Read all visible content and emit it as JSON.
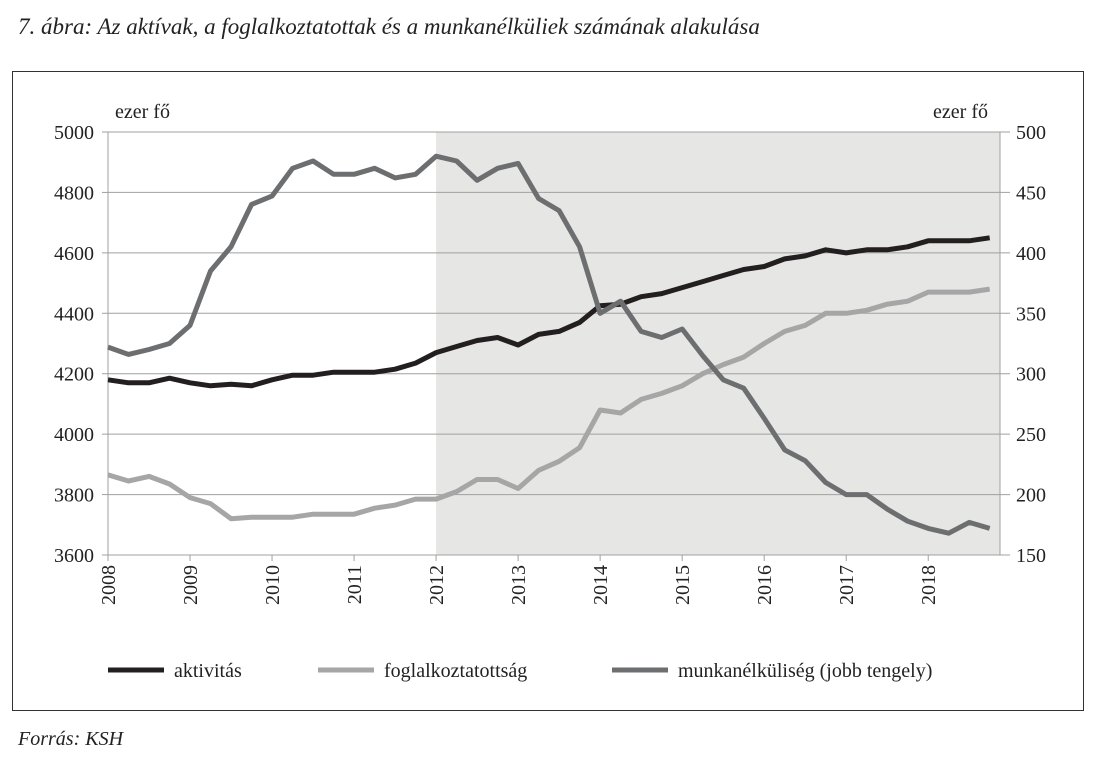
{
  "title": "7. ábra: Az aktívak, a foglalkoztatottak és a munkanélküliek számának alakulása",
  "source": "Forrás: KSH",
  "chart_data": {
    "type": "line",
    "title": "7. ábra: Az aktívak, a foglalkoztatottak és a munkanélküliek számának alakulása",
    "ylabel_left": "ezer fő",
    "ylabel_right": "ezer fő",
    "ylim_left": [
      3600,
      5000
    ],
    "ylim_right": [
      150,
      500
    ],
    "yticks_left": [
      "5000",
      "4800",
      "4600",
      "4400",
      "4200",
      "4000",
      "3800",
      "3600"
    ],
    "yticks_right": [
      "500",
      "450",
      "400",
      "350",
      "300",
      "250",
      "200",
      "150"
    ],
    "xticks": [
      "2008",
      "2009",
      "2010",
      "2011",
      "2012",
      "2013",
      "2014",
      "2015",
      "2016",
      "2017",
      "2018"
    ],
    "x_start": 2008,
    "x_frequency": "quarterly",
    "shaded_region": [
      2012,
      2019
    ],
    "grid": true,
    "legend_position": "bottom",
    "series": [
      {
        "name": "aktivitás",
        "axis": "left",
        "color": "#231f20",
        "values": [
          4180,
          4170,
          4170,
          4185,
          4170,
          4160,
          4165,
          4160,
          4180,
          4195,
          4195,
          4205,
          4205,
          4205,
          4215,
          4235,
          4270,
          4290,
          4310,
          4320,
          4295,
          4330,
          4340,
          4370,
          4425,
          4430,
          4455,
          4465,
          4485,
          4505,
          4525,
          4545,
          4555,
          4580,
          4590,
          4610,
          4600,
          4610,
          4610,
          4620,
          4640,
          4640,
          4640,
          4650
        ]
      },
      {
        "name": "foglalkoztatottság",
        "axis": "left",
        "color": "#a6a6a6",
        "values": [
          3865,
          3845,
          3860,
          3835,
          3790,
          3770,
          3720,
          3725,
          3725,
          3725,
          3735,
          3735,
          3735,
          3755,
          3765,
          3785,
          3785,
          3810,
          3850,
          3850,
          3820,
          3880,
          3910,
          3955,
          4080,
          4070,
          4115,
          4135,
          4160,
          4200,
          4230,
          4255,
          4300,
          4340,
          4360,
          4400,
          4400,
          4410,
          4430,
          4440,
          4470,
          4470,
          4470,
          4480
        ]
      },
      {
        "name": "munkanélküliség (jobb tengely)",
        "axis": "right",
        "color": "#6d6e70",
        "values": [
          322,
          316,
          320,
          325,
          340,
          385,
          405,
          440,
          447,
          470,
          476,
          465,
          465,
          470,
          462,
          465,
          480,
          476,
          460,
          470,
          474,
          445,
          435,
          405,
          350,
          360,
          335,
          330,
          337,
          315,
          295,
          288,
          263,
          237,
          228,
          210,
          200,
          200,
          188,
          178,
          172,
          168,
          177,
          172
        ]
      }
    ]
  }
}
